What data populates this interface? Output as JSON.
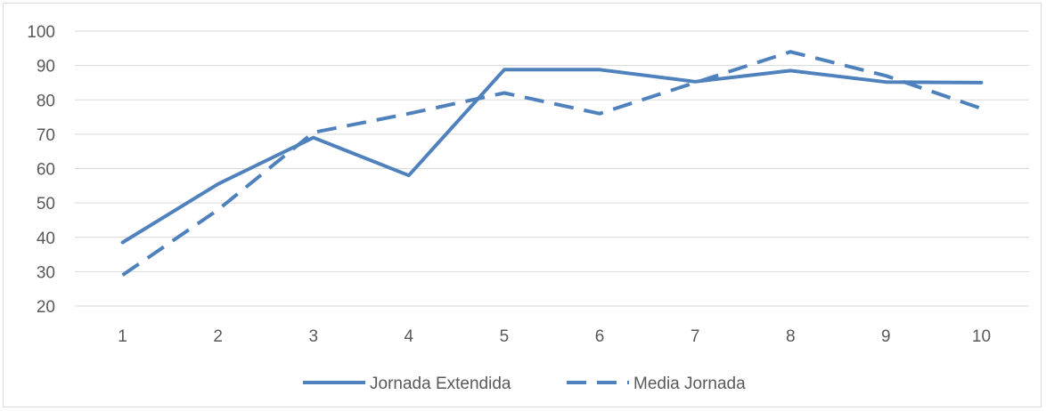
{
  "chart_data": {
    "type": "line",
    "title": "",
    "xlabel": "",
    "ylabel": "",
    "categories": [
      "1",
      "2",
      "3",
      "4",
      "5",
      "6",
      "7",
      "8",
      "9",
      "10"
    ],
    "y_ticks": [
      "20",
      "30",
      "40",
      "50",
      "60",
      "70",
      "80",
      "90",
      "100"
    ],
    "ylim": [
      20,
      100
    ],
    "grid": true,
    "legend_position": "bottom",
    "series": [
      {
        "name": "Jornada Extendida",
        "style": "solid",
        "color": "#4f81bd",
        "values": [
          38.5,
          55.5,
          69,
          58,
          88.8,
          88.8,
          85.3,
          88.5,
          85.2,
          85
        ]
      },
      {
        "name": "Media Jornada",
        "style": "dashed",
        "color": "#4f81bd",
        "values": [
          29,
          48,
          70.5,
          76,
          82,
          76,
          85,
          94,
          87,
          77.5
        ]
      }
    ]
  }
}
